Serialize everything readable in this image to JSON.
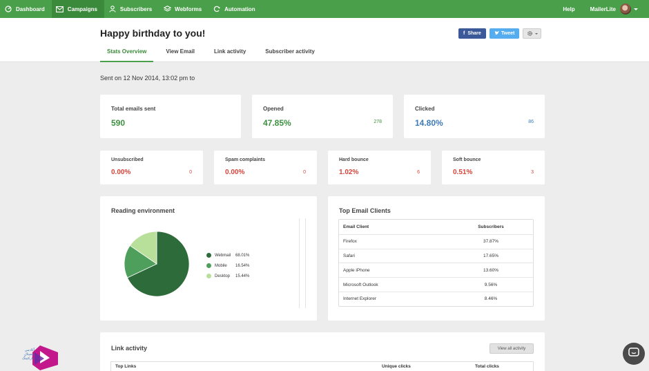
{
  "nav": {
    "items": [
      {
        "label": "Dashboard",
        "icon": "dashboard-icon"
      },
      {
        "label": "Campaigns",
        "icon": "envelope-icon",
        "active": true
      },
      {
        "label": "Subscribers",
        "icon": "user-icon"
      },
      {
        "label": "Webforms",
        "icon": "layers-icon"
      },
      {
        "label": "Automation",
        "icon": "refresh-icon"
      }
    ],
    "help": "Help",
    "account": "MailerLite"
  },
  "header": {
    "title": "Happy birthday to you!",
    "tabs": [
      "Stats Overview",
      "View Email",
      "Link activity",
      "Subscriber activity"
    ],
    "share_label": "Share",
    "tweet_label": "Tweet"
  },
  "sent_line": "Sent on 12 Nov 2014, 13:02 pm to",
  "stats": {
    "total": {
      "label": "Total emails sent",
      "value": "590"
    },
    "opened": {
      "label": "Opened",
      "value": "47.85%",
      "count": "278"
    },
    "clicked": {
      "label": "Clicked",
      "value": "14.80%",
      "count": "86"
    }
  },
  "minor_stats": [
    {
      "label": "Unsubscribed",
      "value": "0.00%",
      "count": "0"
    },
    {
      "label": "Spam complaints",
      "value": "0.00%",
      "count": "0"
    },
    {
      "label": "Hard bounce",
      "value": "1.02%",
      "count": "6"
    },
    {
      "label": "Soft bounce",
      "value": "0.51%",
      "count": "3"
    }
  ],
  "reading": {
    "title": "Reading environment",
    "legend": [
      {
        "name": "Webmail",
        "pct": "68.01%"
      },
      {
        "name": "Mobile",
        "pct": "16.54%"
      },
      {
        "name": "Desktop",
        "pct": "15.44%"
      }
    ]
  },
  "chart_data": {
    "type": "pie",
    "categories": [
      "Webmail",
      "Mobile",
      "Desktop"
    ],
    "values": [
      68.01,
      16.54,
      15.44
    ],
    "colors": [
      "#2e6b3a",
      "#4e9e5c",
      "#b9e09a"
    ]
  },
  "clients": {
    "title": "Top Email Clients",
    "headers": [
      "Email Client",
      "Subscribers"
    ],
    "rows": [
      {
        "name": "Firefox",
        "pct": "37.87%"
      },
      {
        "name": "Safari",
        "pct": "17.65%"
      },
      {
        "name": "Apple iPhone",
        "pct": "13.60%"
      },
      {
        "name": "Microsoft Outlook",
        "pct": "9.56%"
      },
      {
        "name": "Internet Explorer",
        "pct": "8.46%"
      }
    ]
  },
  "links": {
    "title": "Link activity",
    "view_all": "View all activity",
    "headers": [
      "Top Links",
      "Unique clicks",
      "Total clicks"
    ]
  },
  "logo_lines": [
    "آکادمی",
    "دیجیتال",
    "مارکتینگ"
  ]
}
